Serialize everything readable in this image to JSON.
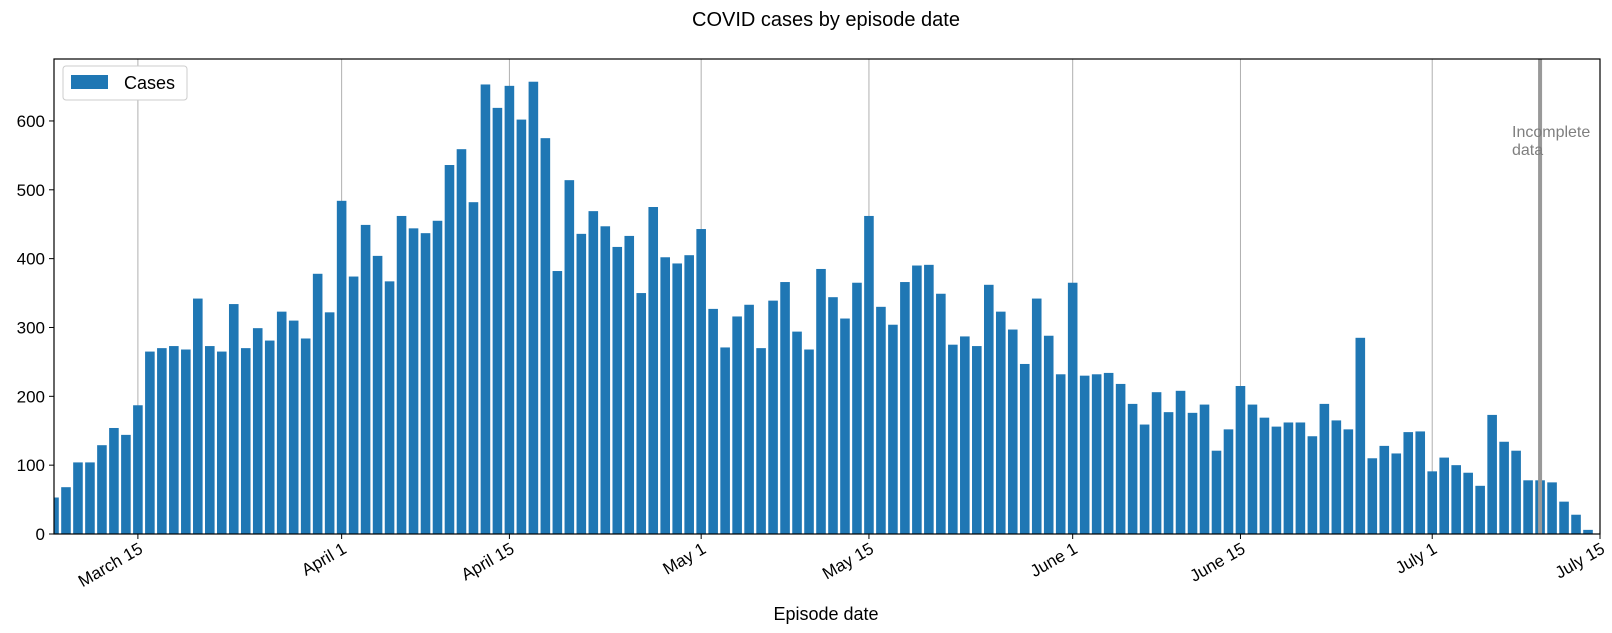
{
  "chart_data": {
    "type": "bar",
    "title": "COVID cases by episode date",
    "xlabel": "Episode date",
    "ylabel": "",
    "start_date": "2020-03-08",
    "xlim": [
      "2020-03-08",
      "2020-07-15"
    ],
    "ylim": [
      0,
      690
    ],
    "x_ticks": [
      {
        "date": "2020-03-15",
        "label": "March 15"
      },
      {
        "date": "2020-04-01",
        "label": "April 1"
      },
      {
        "date": "2020-04-15",
        "label": "April 15"
      },
      {
        "date": "2020-05-01",
        "label": "May 1"
      },
      {
        "date": "2020-05-15",
        "label": "May 15"
      },
      {
        "date": "2020-06-01",
        "label": "June 1"
      },
      {
        "date": "2020-06-15",
        "label": "June 15"
      },
      {
        "date": "2020-07-01",
        "label": "July 1"
      },
      {
        "date": "2020-07-15",
        "label": "July 15"
      }
    ],
    "y_ticks": [
      0,
      100,
      200,
      300,
      400,
      500,
      600
    ],
    "grid": "x",
    "legend": {
      "placement": "top-left",
      "entries": [
        "Cases"
      ]
    },
    "series": [
      {
        "name": "Cases",
        "color": "#1f77b4",
        "values": [
          53,
          68,
          104,
          104,
          129,
          154,
          144,
          187,
          265,
          270,
          273,
          268,
          342,
          273,
          265,
          334,
          270,
          299,
          281,
          323,
          310,
          284,
          378,
          322,
          484,
          374,
          449,
          404,
          367,
          462,
          444,
          437,
          455,
          536,
          559,
          482,
          653,
          619,
          651,
          602,
          657,
          575,
          382,
          514,
          436,
          469,
          447,
          417,
          433,
          350,
          475,
          402,
          393,
          405,
          443,
          327,
          271,
          316,
          333,
          270,
          339,
          366,
          294,
          268,
          385,
          344,
          313,
          365,
          462,
          330,
          304,
          366,
          390,
          391,
          349,
          275,
          287,
          273,
          362,
          323,
          297,
          247,
          342,
          288,
          232,
          365,
          230,
          232,
          234,
          218,
          189,
          159,
          206,
          177,
          208,
          176,
          188,
          121,
          152,
          215,
          188,
          169,
          156,
          162,
          162,
          142,
          189,
          165,
          152,
          285,
          110,
          128,
          117,
          148,
          149,
          91,
          111,
          100,
          89,
          70,
          173,
          134,
          121,
          78,
          78,
          75,
          47,
          28,
          6
        ]
      }
    ],
    "annotation": {
      "text_lines": [
        "Incomplete",
        "data"
      ],
      "marker_date": "2020-07-10",
      "color": "#999999"
    }
  }
}
